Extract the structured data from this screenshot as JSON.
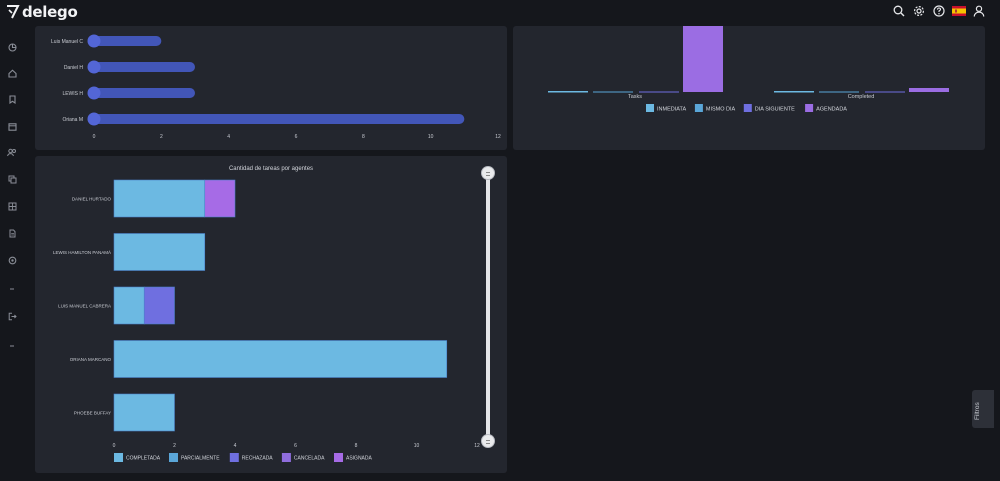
{
  "app": {
    "name": "delego"
  },
  "header": {
    "icons": [
      "search-icon",
      "gear-icon",
      "help-icon",
      "flag-es-icon",
      "user-icon"
    ]
  },
  "sidebar": {
    "icons": [
      "dashboard-icon",
      "home-icon",
      "bookmark-icon",
      "calendar-icon",
      "users-icon",
      "copy-icon",
      "grid-icon",
      "document-icon",
      "settings-icon",
      "dash-icon",
      "logout-icon",
      "dash-icon"
    ]
  },
  "filters_tab": {
    "label": "Filtros"
  },
  "colors": {
    "accent_blue": "#4256b8",
    "light_blue": "#6cb9e2",
    "purple": "#9b6de3",
    "slate_blue": "#6f6fe0"
  },
  "chart_data": [
    {
      "type": "bar",
      "orientation": "horizontal",
      "categories": [
        "Luis Manuel C",
        "Daniel H",
        "LEWIS H",
        "Oriana M"
      ],
      "values": [
        2,
        3,
        3,
        11
      ],
      "xlim": [
        0,
        12
      ],
      "xticks": [
        "0",
        "2",
        "4",
        "6",
        "8",
        "10",
        "12"
      ]
    },
    {
      "type": "bar",
      "categories": [
        "Tasks",
        "Completed"
      ],
      "series": [
        {
          "name": "INMEDIATA",
          "color": "#6cb9e2"
        },
        {
          "name": "MISMO DIA",
          "color": "#5aa6d8"
        },
        {
          "name": "DIA SIGUIENTE",
          "color": "#6f6fe0"
        },
        {
          "name": "AGENDADA",
          "color": "#9b6de3"
        }
      ]
    },
    {
      "type": "bar",
      "orientation": "horizontal",
      "stacked": true,
      "title": "Cantidad de tareas por agentes",
      "categories": [
        "DANIEL HURTADO",
        "LEWIS HAMILTON PANAMÁ",
        "LUIS MANUEL CABRERA",
        "ORIANA MARCANO",
        "PHOEBE BUFFAY"
      ],
      "series": [
        {
          "name": "COMPLETADA",
          "color": "#6cb9e2",
          "values": [
            3,
            3,
            1,
            11,
            2
          ]
        },
        {
          "name": "PARCIALMENTE",
          "color": "#5aa6d8",
          "values": [
            0,
            0,
            0,
            0,
            0
          ]
        },
        {
          "name": "RECHAZADA",
          "color": "#6f6fe0",
          "values": [
            0,
            0,
            1,
            0,
            0
          ]
        },
        {
          "name": "CANCELADA",
          "color": "#8f6ddd",
          "values": [
            0,
            0,
            0,
            0,
            0
          ]
        },
        {
          "name": "ASIGNADA",
          "color": "#a66be6",
          "values": [
            1,
            0,
            0,
            0,
            0
          ]
        }
      ],
      "xlim": [
        0,
        12
      ],
      "xticks": [
        "0",
        "2",
        "4",
        "6",
        "8",
        "10",
        "12"
      ]
    }
  ]
}
